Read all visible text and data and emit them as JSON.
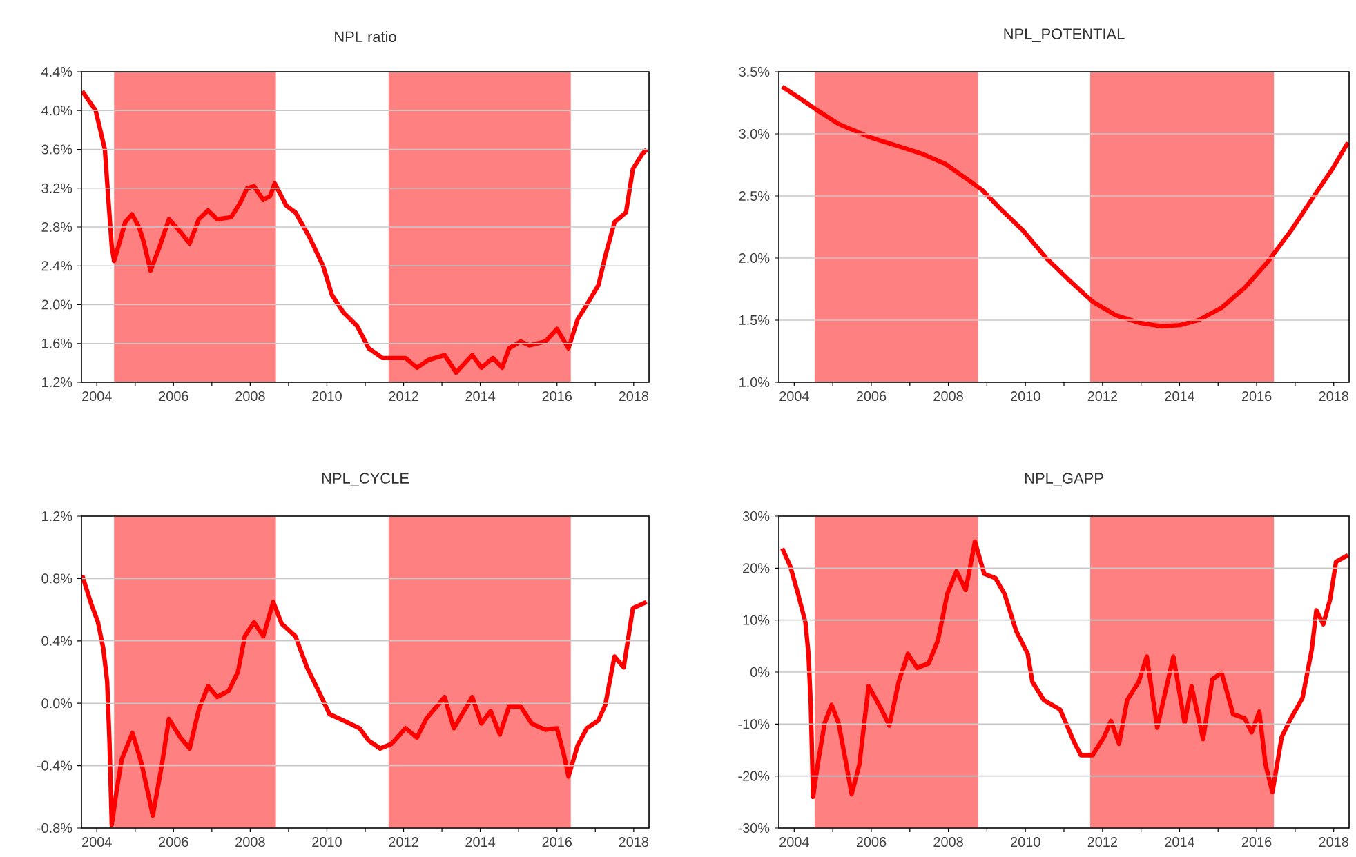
{
  "chart_data": [
    {
      "type": "line",
      "title": "NPL ratio",
      "xlim": [
        2003.6,
        2018.4
      ],
      "xticks": [
        2004,
        2006,
        2008,
        2010,
        2012,
        2014,
        2016,
        2018
      ],
      "ylim": [
        1.2,
        4.4
      ],
      "yticks": [
        {
          "value": 1.2,
          "label": "1.2%"
        },
        {
          "value": 1.6,
          "label": "1.6%"
        },
        {
          "value": 2.0,
          "label": "2.0%"
        },
        {
          "value": 2.4,
          "label": "2.4%"
        },
        {
          "value": 2.8,
          "label": "2.8%"
        },
        {
          "value": 3.2,
          "label": "3.2%"
        },
        {
          "value": 3.6,
          "label": "3.6%"
        },
        {
          "value": 4.0,
          "label": "4.0%"
        },
        {
          "value": 4.4,
          "label": "4.4%"
        }
      ],
      "grid": "y",
      "bands": [
        {
          "axis": "x",
          "from": 2004.45,
          "to": 2008.67,
          "color": "#ff8080"
        },
        {
          "axis": "x",
          "from": 2011.61,
          "to": 2016.36,
          "color": "#ff8080"
        }
      ],
      "series": [
        {
          "color": "#ff0000",
          "x": [
            2003.62,
            2003.97,
            2004.21,
            2004.29,
            2004.39,
            2004.45,
            2004.6,
            2004.74,
            2004.92,
            2005.1,
            2005.22,
            2005.4,
            2005.64,
            2005.88,
            2006.18,
            2006.42,
            2006.66,
            2006.9,
            2007.14,
            2007.5,
            2007.74,
            2007.92,
            2008.1,
            2008.34,
            2008.52,
            2008.64,
            2008.94,
            2009.18,
            2009.54,
            2009.9,
            2010.13,
            2010.43,
            2010.79,
            2011.09,
            2011.45,
            2012.05,
            2012.35,
            2012.65,
            2013.07,
            2013.37,
            2013.79,
            2014.03,
            2014.33,
            2014.57,
            2014.75,
            2015.05,
            2015.28,
            2015.7,
            2016.0,
            2016.3,
            2016.54,
            2016.78,
            2017.08,
            2017.26,
            2017.5,
            2017.8,
            2017.98,
            2018.22,
            2018.34
          ],
          "values": [
            4.2,
            4.0,
            3.6,
            3.15,
            2.6,
            2.45,
            2.65,
            2.85,
            2.93,
            2.8,
            2.65,
            2.35,
            2.6,
            2.88,
            2.75,
            2.63,
            2.88,
            2.97,
            2.88,
            2.9,
            3.05,
            3.2,
            3.22,
            3.08,
            3.12,
            3.25,
            3.02,
            2.95,
            2.7,
            2.4,
            2.1,
            1.92,
            1.78,
            1.55,
            1.45,
            1.45,
            1.35,
            1.43,
            1.48,
            1.3,
            1.48,
            1.35,
            1.45,
            1.35,
            1.55,
            1.62,
            1.58,
            1.62,
            1.75,
            1.55,
            1.85,
            2.0,
            2.2,
            2.5,
            2.85,
            2.95,
            3.4,
            3.55,
            3.6
          ]
        }
      ]
    },
    {
      "type": "line",
      "title": "NPL_POTENTIAL",
      "xlim": [
        2003.6,
        2018.4
      ],
      "xticks": [
        2004,
        2006,
        2008,
        2010,
        2012,
        2014,
        2016,
        2018
      ],
      "ylim": [
        1.0,
        3.5
      ],
      "yticks": [
        {
          "value": 1.0,
          "label": "1.0%"
        },
        {
          "value": 1.5,
          "label": "1.5%"
        },
        {
          "value": 2.0,
          "label": "2.0%"
        },
        {
          "value": 2.5,
          "label": "2.5%"
        },
        {
          "value": 3.0,
          "label": "3.0%"
        },
        {
          "value": 3.5,
          "label": "3.5%"
        }
      ],
      "grid": "y",
      "bands": [
        {
          "axis": "x",
          "from": 2004.53,
          "to": 2008.77,
          "color": "#ff8080"
        },
        {
          "axis": "x",
          "from": 2011.68,
          "to": 2016.45,
          "color": "#ff8080"
        }
      ],
      "series": [
        {
          "color": "#ff0000",
          "x": [
            2003.69,
            2004.08,
            2004.55,
            2005.15,
            2005.99,
            2006.71,
            2007.31,
            2007.91,
            2008.51,
            2008.87,
            2009.34,
            2009.94,
            2010.54,
            2011.14,
            2011.74,
            2012.34,
            2012.94,
            2013.54,
            2014.01,
            2014.49,
            2015.09,
            2015.69,
            2016.29,
            2016.89,
            2017.49,
            2017.97,
            2018.37
          ],
          "values": [
            3.38,
            3.3,
            3.2,
            3.08,
            2.97,
            2.9,
            2.84,
            2.76,
            2.63,
            2.55,
            2.4,
            2.22,
            2.0,
            1.82,
            1.65,
            1.54,
            1.48,
            1.45,
            1.46,
            1.5,
            1.6,
            1.76,
            1.97,
            2.22,
            2.5,
            2.72,
            2.93
          ]
        }
      ]
    },
    {
      "type": "line",
      "title": "NPL_CYCLE",
      "xlim": [
        2003.6,
        2018.4
      ],
      "xticks": [
        2004,
        2006,
        2008,
        2010,
        2012,
        2014,
        2016,
        2018
      ],
      "ylim": [
        -0.8,
        1.2
      ],
      "yticks": [
        {
          "value": -0.8,
          "label": "-0.8%"
        },
        {
          "value": -0.4,
          "label": "-0.4%"
        },
        {
          "value": 0.0,
          "label": "0.0%"
        },
        {
          "value": 0.4,
          "label": "0.4%"
        },
        {
          "value": 0.8,
          "label": "0.8%"
        },
        {
          "value": 1.2,
          "label": "1.2%"
        }
      ],
      "grid": "y",
      "bands": [
        {
          "axis": "x",
          "from": 2004.45,
          "to": 2008.67,
          "color": "#ff8080"
        },
        {
          "axis": "x",
          "from": 2011.61,
          "to": 2016.36,
          "color": "#ff8080"
        }
      ],
      "series": [
        {
          "color": "#ff0000",
          "x": [
            2003.62,
            2003.85,
            2004.03,
            2004.17,
            2004.27,
            2004.33,
            2004.39,
            2004.51,
            2004.65,
            2004.93,
            2005.17,
            2005.46,
            2005.7,
            2005.88,
            2006.18,
            2006.42,
            2006.66,
            2006.9,
            2007.14,
            2007.44,
            2007.68,
            2007.86,
            2008.1,
            2008.34,
            2008.6,
            2008.82,
            2009.18,
            2009.48,
            2009.78,
            2010.07,
            2010.43,
            2010.85,
            2011.09,
            2011.39,
            2011.69,
            2012.05,
            2012.35,
            2012.59,
            2013.07,
            2013.31,
            2013.79,
            2014.03,
            2014.27,
            2014.51,
            2014.75,
            2015.05,
            2015.34,
            2015.7,
            2016.0,
            2016.18,
            2016.3,
            2016.54,
            2016.78,
            2017.08,
            2017.26,
            2017.5,
            2017.74,
            2017.98,
            2018.34
          ],
          "values": [
            0.82,
            0.64,
            0.52,
            0.35,
            0.14,
            -0.24,
            -0.78,
            -0.57,
            -0.36,
            -0.19,
            -0.39,
            -0.72,
            -0.39,
            -0.1,
            -0.22,
            -0.29,
            -0.04,
            0.11,
            0.04,
            0.08,
            0.2,
            0.43,
            0.52,
            0.43,
            0.65,
            0.51,
            0.43,
            0.23,
            0.08,
            -0.07,
            -0.11,
            -0.16,
            -0.24,
            -0.29,
            -0.26,
            -0.16,
            -0.22,
            -0.1,
            0.04,
            -0.16,
            0.04,
            -0.13,
            -0.05,
            -0.2,
            -0.02,
            -0.02,
            -0.13,
            -0.17,
            -0.16,
            -0.33,
            -0.47,
            -0.27,
            -0.16,
            -0.11,
            -0.01,
            0.3,
            0.23,
            0.61,
            0.65
          ]
        }
      ]
    },
    {
      "type": "line",
      "title": "NPL_GAPP",
      "xlim": [
        2003.6,
        2018.4
      ],
      "xticks": [
        2004,
        2006,
        2008,
        2010,
        2012,
        2014,
        2016,
        2018
      ],
      "ylim": [
        -30,
        30
      ],
      "yticks": [
        {
          "value": -30,
          "label": "-30%"
        },
        {
          "value": -20,
          "label": "-20%"
        },
        {
          "value": -10,
          "label": "-10%"
        },
        {
          "value": 0,
          "label": "0%"
        },
        {
          "value": 10,
          "label": "10%"
        },
        {
          "value": 20,
          "label": "20%"
        },
        {
          "value": 30,
          "label": "30%"
        }
      ],
      "grid": "y",
      "bands": [
        {
          "axis": "x",
          "from": 2004.53,
          "to": 2008.77,
          "color": "#ff8080"
        },
        {
          "axis": "x",
          "from": 2011.68,
          "to": 2016.45,
          "color": "#ff8080"
        }
      ],
      "series": [
        {
          "color": "#ff0000",
          "x": [
            2003.69,
            2003.9,
            2004.1,
            2004.29,
            2004.37,
            2004.43,
            2004.49,
            2004.61,
            2004.79,
            2004.97,
            2005.15,
            2005.33,
            2005.49,
            2005.69,
            2005.93,
            2006.23,
            2006.47,
            2006.71,
            2006.95,
            2007.19,
            2007.49,
            2007.73,
            2007.97,
            2008.21,
            2008.45,
            2008.69,
            2008.93,
            2009.22,
            2009.46,
            2009.76,
            2010.06,
            2010.18,
            2010.48,
            2010.9,
            2011.26,
            2011.44,
            2011.74,
            2012.04,
            2012.22,
            2012.43,
            2012.64,
            2012.94,
            2013.15,
            2013.42,
            2013.84,
            2014.13,
            2014.31,
            2014.61,
            2014.85,
            2015.09,
            2015.39,
            2015.69,
            2015.87,
            2016.07,
            2016.23,
            2016.41,
            2016.65,
            2016.89,
            2017.19,
            2017.43,
            2017.55,
            2017.73,
            2017.91,
            2018.06,
            2018.37
          ],
          "values": [
            23.8,
            20.3,
            15,
            9.6,
            3.5,
            -6.3,
            -24,
            -17.8,
            -9.8,
            -6.3,
            -9.8,
            -16.9,
            -23.5,
            -17.8,
            -2.7,
            -6.7,
            -10.3,
            -1.9,
            3.5,
            0.8,
            1.7,
            6.1,
            15,
            19.4,
            15.8,
            25.1,
            18.9,
            18.1,
            15,
            7.9,
            3.5,
            -1.9,
            -5.4,
            -7.2,
            -13.4,
            -16,
            -16,
            -12.5,
            -9.4,
            -13.8,
            -5.4,
            -1.9,
            3,
            -10.7,
            3,
            -9.8,
            -2.7,
            -12.9,
            -1.4,
            -0.1,
            -8.1,
            -8.9,
            -11.6,
            -7.6,
            -17.8,
            -23.1,
            -12.5,
            -8.9,
            -5,
            4.3,
            11.9,
            9.2,
            14.1,
            21.2,
            22.5
          ]
        }
      ]
    }
  ]
}
